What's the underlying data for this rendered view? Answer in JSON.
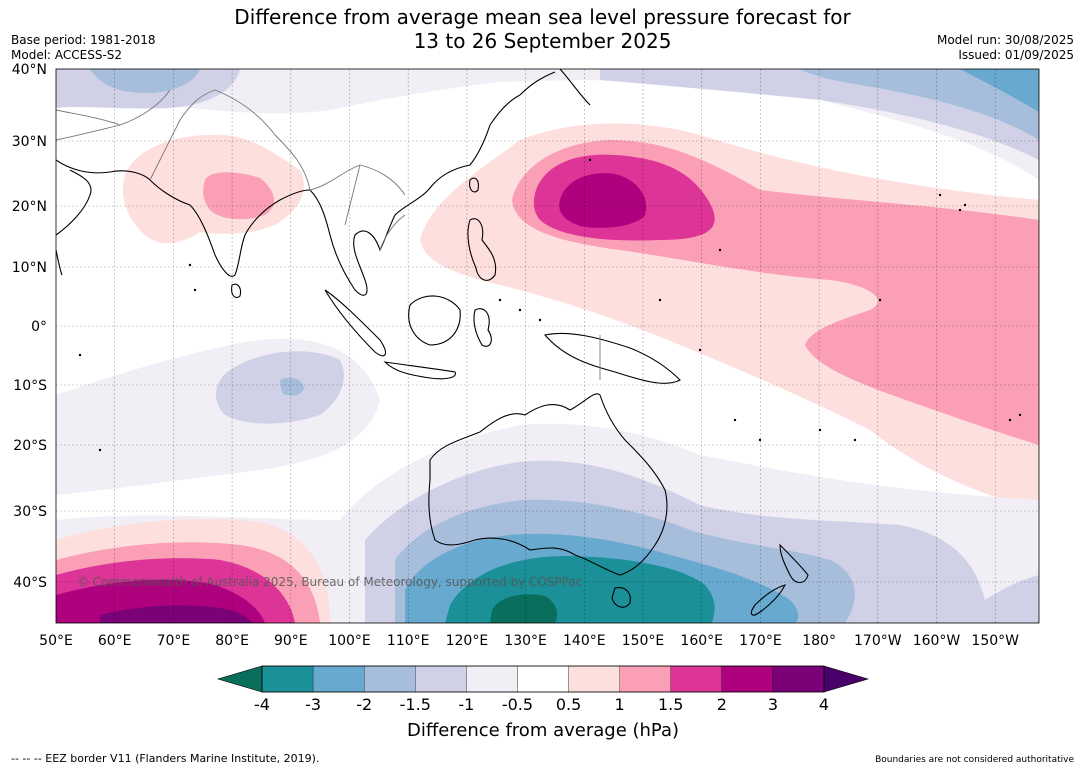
{
  "header": {
    "title_line1": "Difference from average mean sea level pressure forecast for",
    "title_line2": "13 to 26 September 2025",
    "base_period": "Base period: 1981-2018",
    "model": "Model: ACCESS-S2",
    "model_run": "Model run: 30/08/2025",
    "issued": "Issued: 01/09/2025"
  },
  "map": {
    "lat_labels": [
      "40°N",
      "30°N",
      "20°N",
      "10°N",
      "0°",
      "10°S",
      "20°S",
      "30°S",
      "40°S"
    ],
    "lon_labels": [
      "50°E",
      "60°E",
      "70°E",
      "80°E",
      "90°E",
      "100°E",
      "110°E",
      "120°E",
      "130°E",
      "140°E",
      "150°E",
      "160°E",
      "170°E",
      "180°",
      "170°W",
      "160°W",
      "150°W"
    ],
    "copyright": "© Commonwealth of Australia 2025, Bureau of Meteorology, supported by COSPPac",
    "features": {
      "land_outlines": [
        "Indian subcontinent",
        "Southeast Asia",
        "Maritime Continent",
        "Australia",
        "New Zealand"
      ],
      "anomaly_regions": [
        {
          "name": "Western Pacific positive anomaly",
          "level": "3"
        },
        {
          "name": "Central Pacific positive anomaly",
          "level": "1.5"
        },
        {
          "name": "India positive anomaly",
          "level": "1.5"
        },
        {
          "name": "Southern Indian Ocean positive anomaly",
          "level": "4"
        },
        {
          "name": "South of Australia negative anomaly",
          "level": "-4"
        },
        {
          "name": "Eastern Indian Ocean negative anomaly",
          "level": "-2"
        }
      ]
    }
  },
  "colorbar": {
    "ticks": [
      "-4",
      "-3",
      "-2",
      "-1.5",
      "-1",
      "-0.5",
      "0.5",
      "1",
      "1.5",
      "2",
      "3",
      "4"
    ],
    "colors": [
      "#0a6e5c",
      "#1c9099",
      "#67a9cf",
      "#a6bddb",
      "#d0d1e6",
      "#f1eef6",
      "#ffffff",
      "#fde0dd",
      "#fa9fb5",
      "#dd3497",
      "#ae017e",
      "#7a0177",
      "#49006a"
    ],
    "title": "Difference from average (hPa)"
  },
  "footer": {
    "eez_note": "--  --  -- EEZ border V11 (Flanders Marine Institute, 2019).",
    "boundaries_note": "Boundaries are not considered authoritative"
  }
}
